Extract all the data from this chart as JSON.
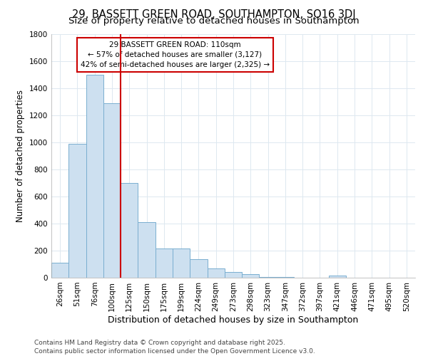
{
  "title": "29, BASSETT GREEN ROAD, SOUTHAMPTON, SO16 3DJ",
  "subtitle": "Size of property relative to detached houses in Southampton",
  "xlabel": "Distribution of detached houses by size in Southampton",
  "ylabel": "Number of detached properties",
  "bin_labels": [
    "26sqm",
    "51sqm",
    "76sqm",
    "100sqm",
    "125sqm",
    "150sqm",
    "175sqm",
    "199sqm",
    "224sqm",
    "249sqm",
    "273sqm",
    "298sqm",
    "323sqm",
    "347sqm",
    "372sqm",
    "397sqm",
    "421sqm",
    "446sqm",
    "471sqm",
    "495sqm",
    "520sqm"
  ],
  "bar_values": [
    110,
    990,
    1500,
    1290,
    700,
    410,
    215,
    215,
    135,
    70,
    40,
    25,
    5,
    5,
    0,
    0,
    15,
    0,
    0,
    0,
    0
  ],
  "bar_color": "#cde0f0",
  "bar_edge_color": "#7aaed0",
  "vline_x_index": 3,
  "vline_color": "#cc0000",
  "annotation_text": "29 BASSETT GREEN ROAD: 110sqm\n← 57% of detached houses are smaller (3,127)\n42% of semi-detached houses are larger (2,325) →",
  "annotation_box_facecolor": "white",
  "annotation_box_edgecolor": "#cc0000",
  "ylim": [
    0,
    1800
  ],
  "yticks": [
    0,
    200,
    400,
    600,
    800,
    1000,
    1200,
    1400,
    1600,
    1800
  ],
  "background_color": "#ffffff",
  "grid_color": "#dde8f0",
  "footer_text": "Contains HM Land Registry data © Crown copyright and database right 2025.\nContains public sector information licensed under the Open Government Licence v3.0.",
  "title_fontsize": 10.5,
  "subtitle_fontsize": 9.5,
  "xlabel_fontsize": 9,
  "ylabel_fontsize": 8.5,
  "tick_fontsize": 7.5,
  "annotation_fontsize": 7.5,
  "footer_fontsize": 6.5
}
